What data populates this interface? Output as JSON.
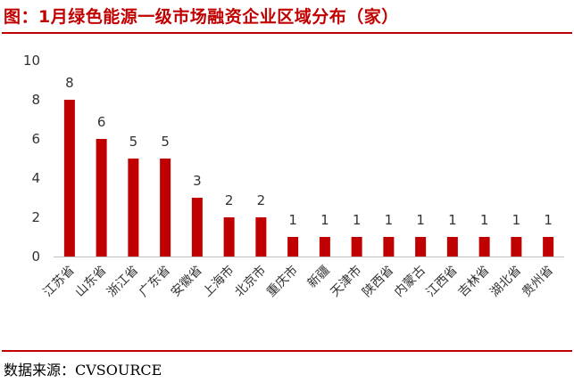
{
  "title": "图：1月绿色能源一级市场融资企业区域分布（家）",
  "source": "数据来源：CVSOURCE",
  "colors": {
    "bar": "#c00000",
    "accent": "#c00000"
  },
  "chart_data": {
    "type": "bar",
    "categories": [
      "江苏省",
      "山东省",
      "浙江省",
      "广东省",
      "安徽省",
      "上海市",
      "北京市",
      "重庆市",
      "新疆",
      "天津市",
      "陕西省",
      "内蒙古",
      "江西省",
      "吉林省",
      "湖北省",
      "贵州省"
    ],
    "values": [
      8,
      6,
      5,
      5,
      3,
      2,
      2,
      1,
      1,
      1,
      1,
      1,
      1,
      1,
      1,
      1
    ],
    "yticks": [
      "0",
      "2",
      "4",
      "6",
      "8",
      "10"
    ],
    "ylim": [
      0,
      10
    ],
    "grid": false,
    "legend": "none"
  }
}
